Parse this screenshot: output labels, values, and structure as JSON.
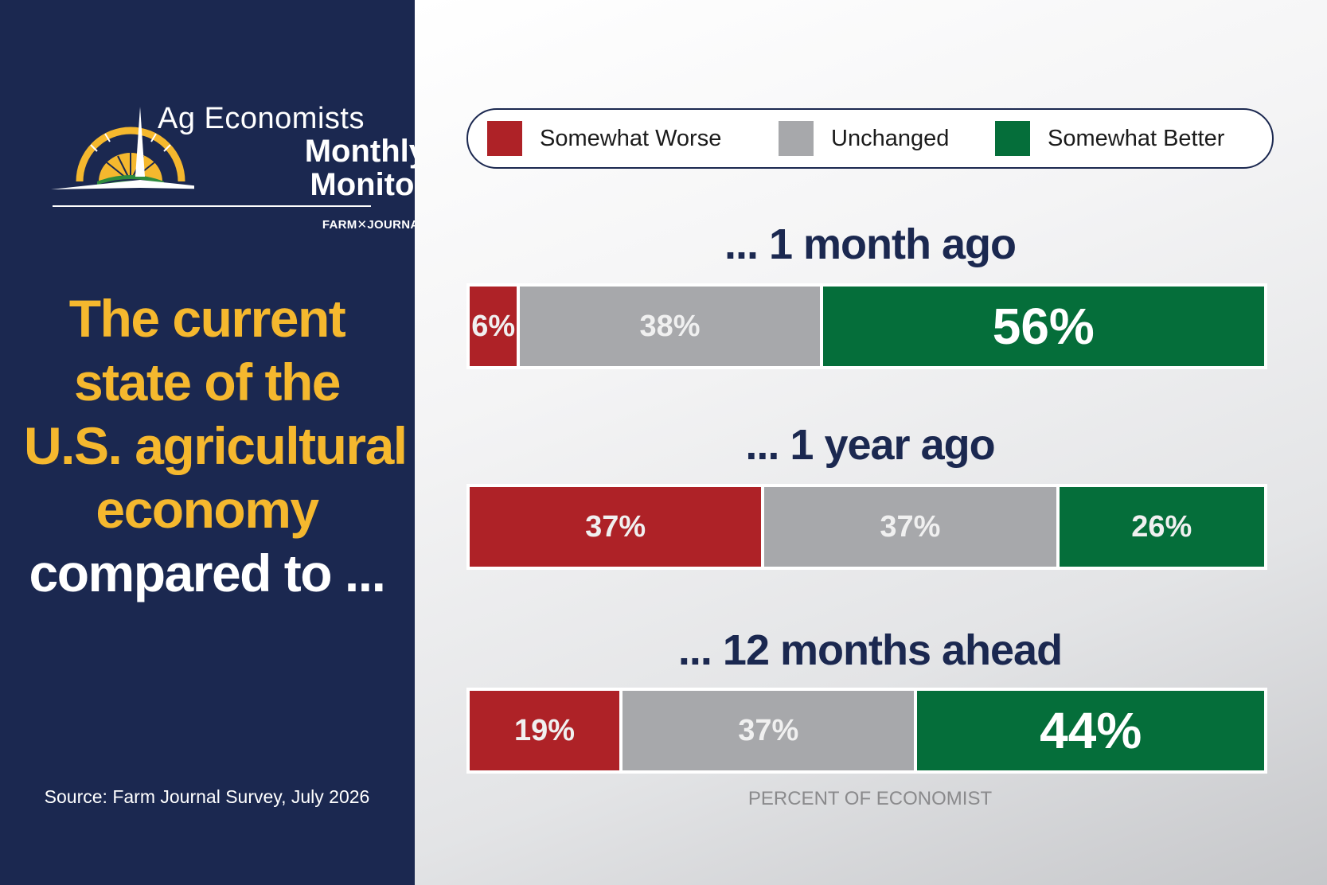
{
  "logo": {
    "line1": "Ag Economists",
    "line2": "Monthly",
    "line3": "Monitor",
    "brand": "FARM✕JOURNAL"
  },
  "headline": {
    "line1": "The current",
    "line2": "state of the",
    "line3": "U.S. agricultural",
    "line4": "economy",
    "line5": "compared to ..."
  },
  "source": "Source: Farm Journal Survey, July 2026",
  "colors": {
    "worse": "#ae2227",
    "unchanged": "#a7a8ab",
    "better": "#056e3a",
    "navy": "#1b2850",
    "gold": "#f5b82e"
  },
  "chart_data": {
    "type": "bar",
    "orientation": "horizontal",
    "stacked": true,
    "categories": [
      "... 1 month ago",
      "... 1 year ago",
      "... 12 months ahead"
    ],
    "series": [
      {
        "name": "Somewhat Worse",
        "values": [
          6,
          37,
          19
        ],
        "labels": [
          "6%",
          "37%",
          "19%"
        ]
      },
      {
        "name": "Unchanged",
        "values": [
          38,
          37,
          37
        ],
        "labels": [
          "38%",
          "37%",
          "37%"
        ]
      },
      {
        "name": "Somewhat Better",
        "values": [
          56,
          26,
          44
        ],
        "labels": [
          "56%",
          "26%",
          "44%"
        ]
      }
    ],
    "xlim": [
      0,
      100
    ],
    "legend_position": "top",
    "axis_note": "PERCENT OF ECONOMIST"
  }
}
